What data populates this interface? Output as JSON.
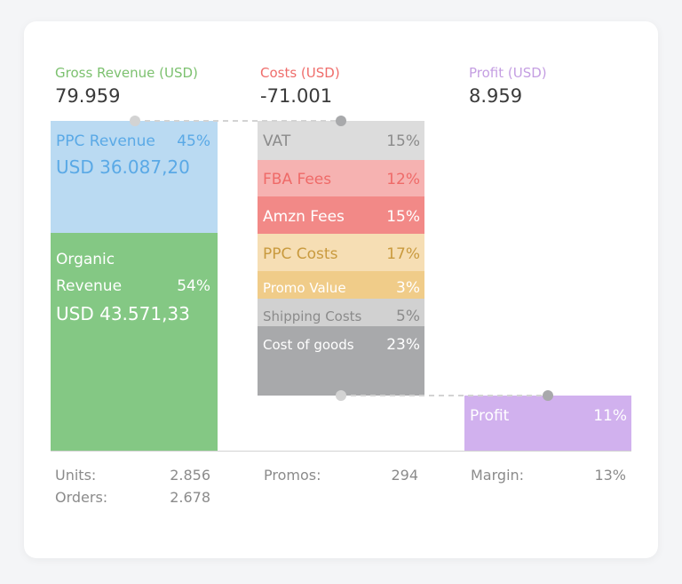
{
  "summary": {
    "gross": {
      "label": "Gross Revenue (USD)",
      "value": "79.959",
      "color": "#7cc16f"
    },
    "costs": {
      "label": "Costs (USD)",
      "value": "-71.001",
      "color": "#ef6d6b"
    },
    "profit": {
      "label": "Profit (USD)",
      "value": "8.959",
      "color": "#c49ee2"
    }
  },
  "chart_data": {
    "type": "bar",
    "title": "",
    "revenue": [
      {
        "name": "PPC Revenue",
        "percent": "45%",
        "amount": "USD 36.087,20",
        "value": 36087.2,
        "fill": "#badaf2",
        "text": "#5aa9e6"
      },
      {
        "name": "Organic Revenue",
        "name_line1": "Organic",
        "name_line2": "Revenue",
        "percent": "54%",
        "amount": "USD 43.571,33",
        "value": 43571.33,
        "fill": "#84c884",
        "text": "#ffffff"
      }
    ],
    "costs": [
      {
        "name": "VAT",
        "percent": "15%",
        "fill": "#dcdcdc",
        "text": "#8b8b8b"
      },
      {
        "name": "FBA Fees",
        "percent": "12%",
        "fill": "#f6b2b1",
        "text": "#ef6a68"
      },
      {
        "name": "Amzn Fees",
        "percent": "15%",
        "fill": "#f28987",
        "text": "#ffffff"
      },
      {
        "name": "PPC Costs",
        "percent": "17%",
        "fill": "#f6deb4",
        "text": "#c99a3e"
      },
      {
        "name": "Promo Value",
        "percent": "3%",
        "fill": "#f0cc89",
        "text": "#ffffff"
      },
      {
        "name": "Shipping Costs",
        "percent": "5%",
        "fill": "#d1d1d1",
        "text": "#8b8b8b"
      },
      {
        "name": "Cost of goods",
        "percent": "23%",
        "fill": "#a8a9ab",
        "text": "#ffffff"
      }
    ],
    "profit": {
      "name": "Profit",
      "percent": "11%",
      "fill": "#d1b1ee",
      "text": "#ffffff"
    }
  },
  "stats": {
    "units": {
      "label": "Units:",
      "value": "2.856"
    },
    "orders": {
      "label": "Orders:",
      "value": "2.678"
    },
    "promos": {
      "label": "Promos:",
      "value": "294"
    },
    "margin": {
      "label": "Margin:",
      "value": "13%"
    }
  }
}
